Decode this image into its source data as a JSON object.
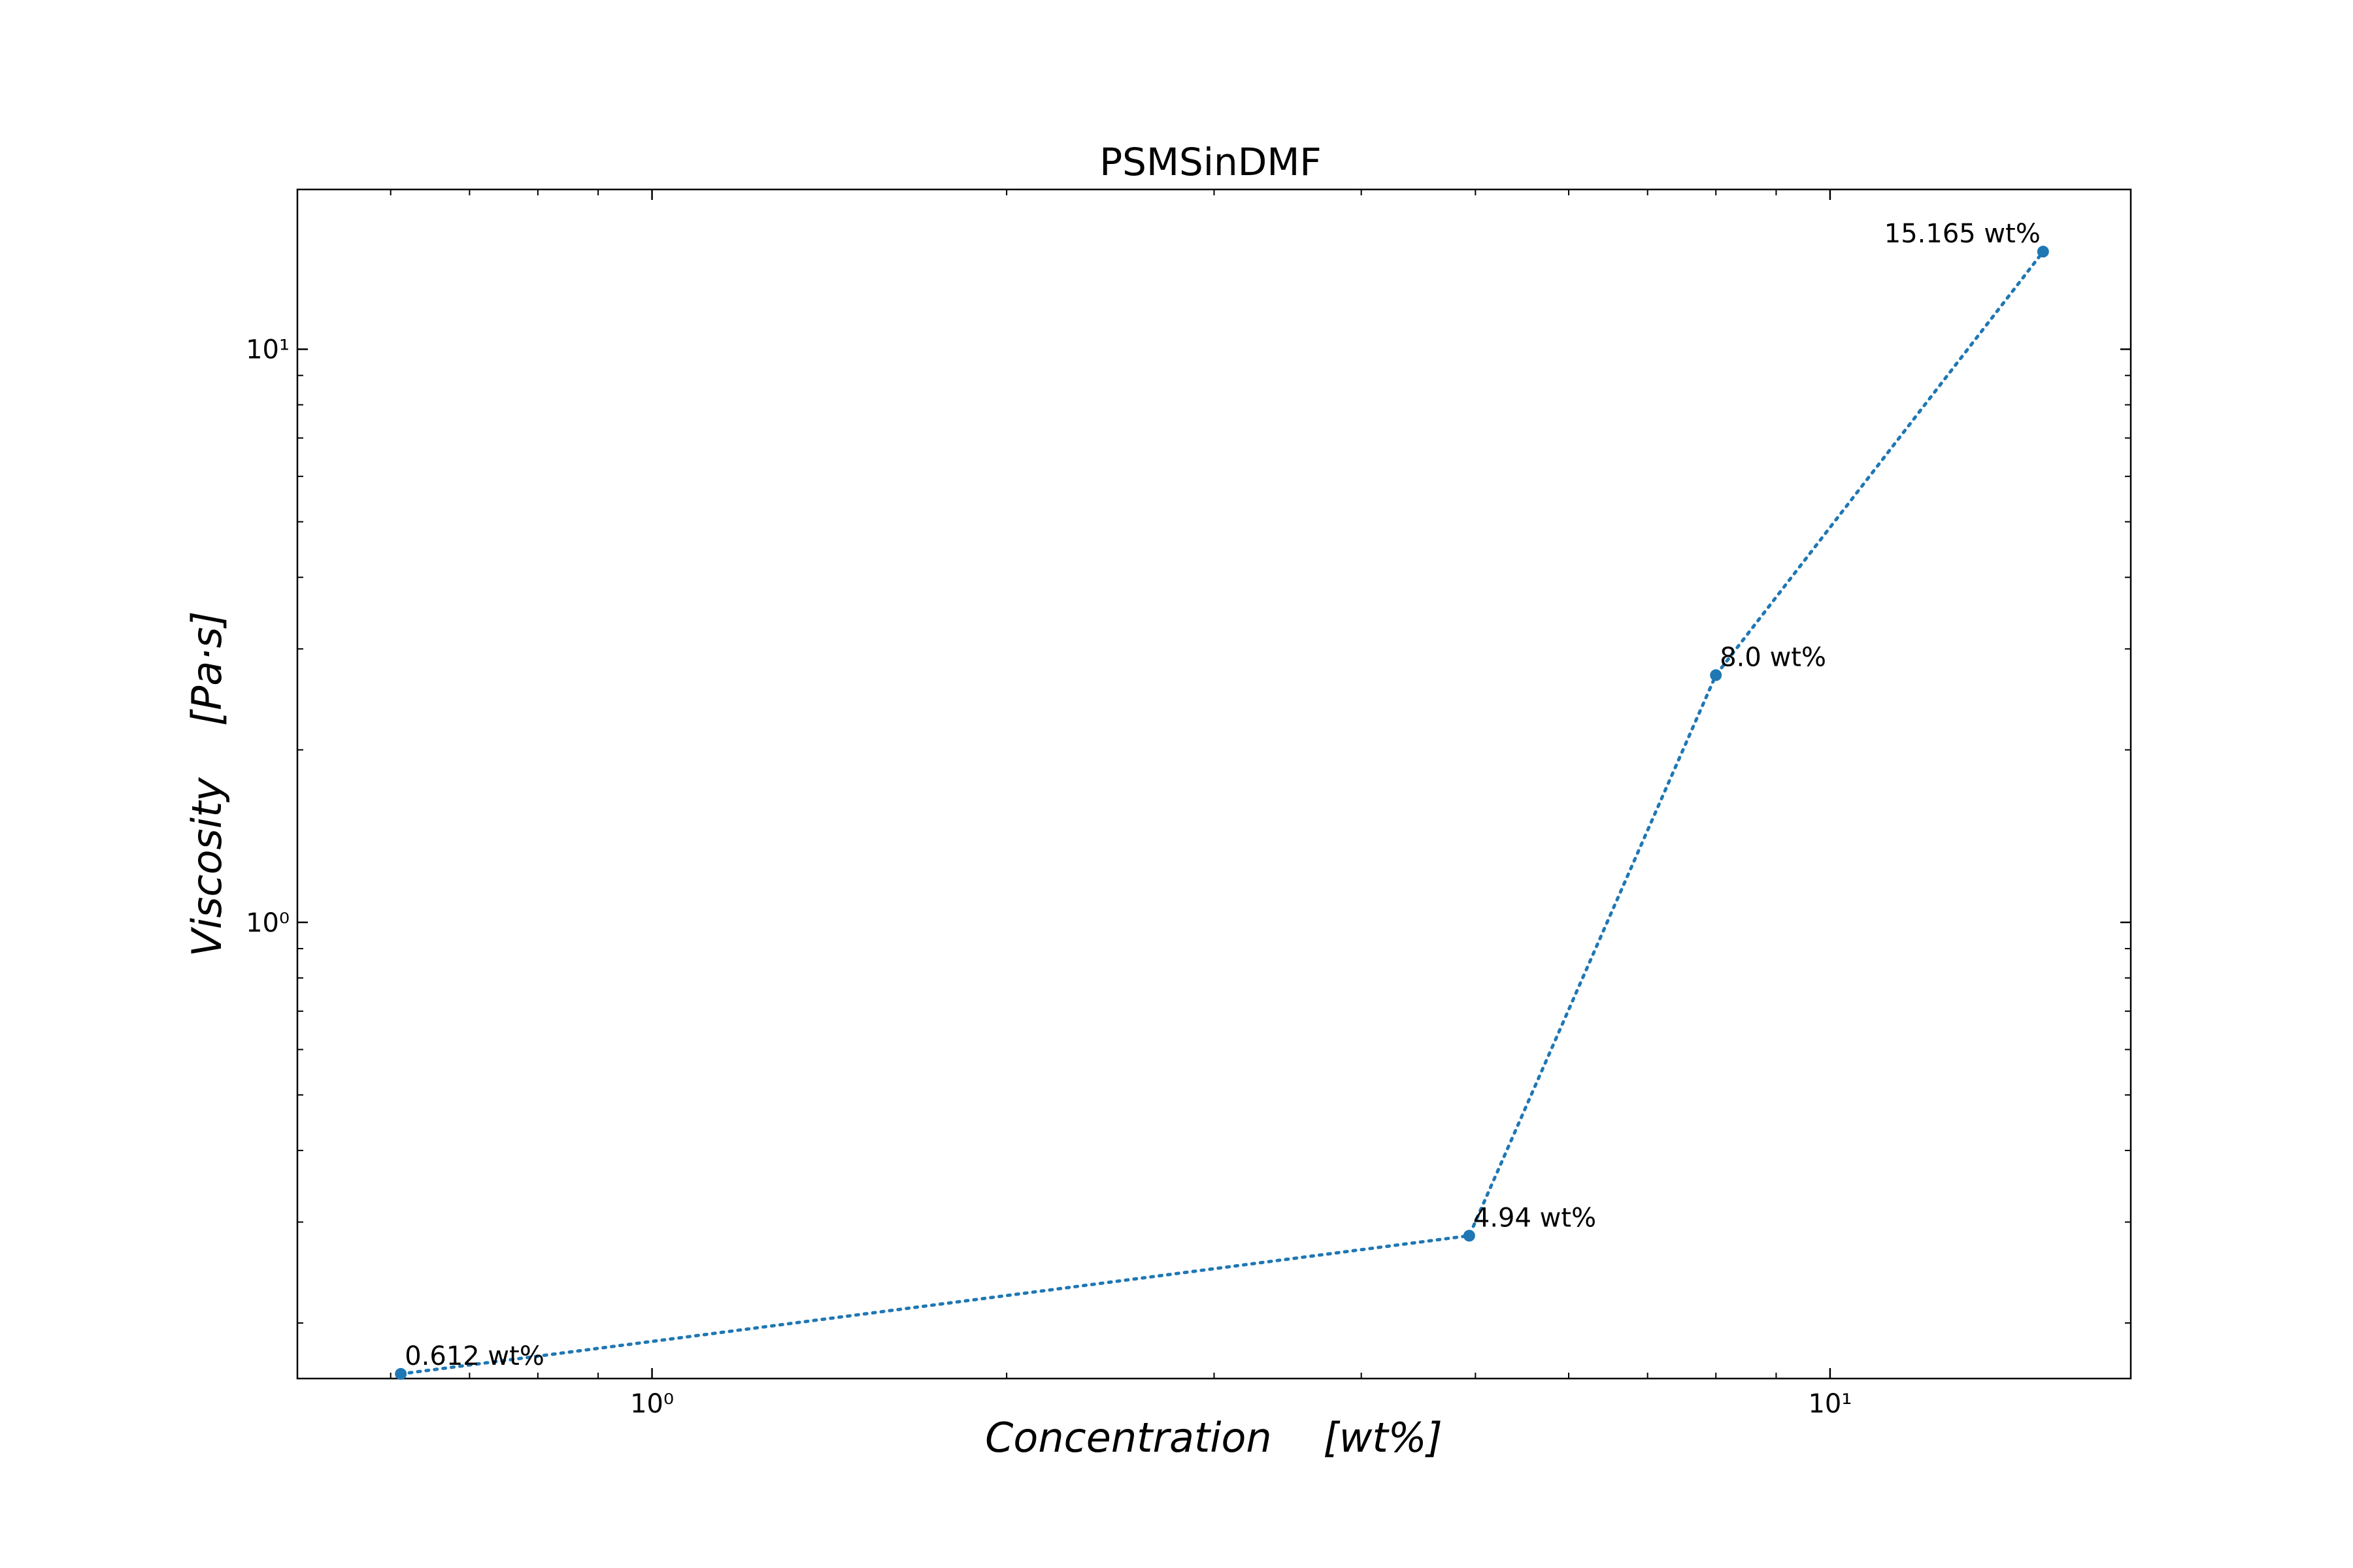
{
  "chart_data": {
    "type": "line",
    "title": "PSMSinDMF",
    "xlabel": "Concentration    [wt%]",
    "ylabel": "Viscosity    [Pa·s]",
    "xscale": "log",
    "yscale": "log",
    "xlim": [
      0.5,
      18
    ],
    "ylim": [
      0.16,
      19
    ],
    "grid": false,
    "legend": "none",
    "line_style": "dotted",
    "marker": "circle",
    "color": "#1f77b4",
    "x_ticks": [
      {
        "value": 1,
        "label": "10⁰"
      },
      {
        "value": 10,
        "label": "10¹"
      }
    ],
    "y_ticks": [
      {
        "value": 1,
        "label": "10⁰"
      },
      {
        "value": 10,
        "label": "10¹"
      }
    ],
    "series": [
      {
        "x": [
          0.612,
          4.94,
          8.0,
          15.165
        ],
        "y": [
          0.163,
          0.284,
          2.7,
          14.8
        ],
        "labels": [
          "0.612 wt%",
          "4.94 wt%",
          "8.0 wt%",
          "15.165 wt%"
        ]
      }
    ]
  }
}
